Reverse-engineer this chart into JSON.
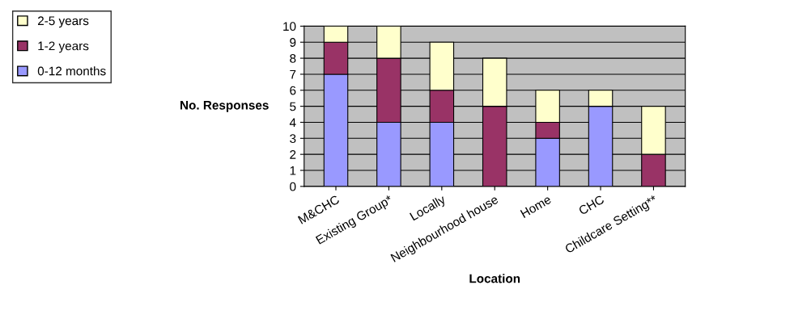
{
  "chart_data": {
    "type": "bar",
    "stacked": true,
    "xlabel": "Location",
    "ylabel": "No. Responses",
    "categories": [
      "M&CHC",
      "Existing Group*",
      "Locally",
      "Neighbourhood house",
      "Home",
      "CHC",
      "Childcare Setting**"
    ],
    "series": [
      {
        "name": "0-12 months",
        "color": "#9999ff",
        "values": [
          7,
          4,
          4,
          0,
          3,
          5,
          0
        ]
      },
      {
        "name": "1-2 years",
        "color": "#993366",
        "values": [
          2,
          4,
          2,
          5,
          1,
          0,
          2
        ]
      },
      {
        "name": "2-5 years",
        "color": "#ffffcc",
        "values": [
          1,
          2,
          3,
          3,
          2,
          1,
          3
        ]
      }
    ],
    "ylim": [
      0,
      10
    ],
    "yticks": [
      0,
      1,
      2,
      3,
      4,
      5,
      6,
      7,
      8,
      9,
      10
    ],
    "grid": "y",
    "legend": "left"
  }
}
